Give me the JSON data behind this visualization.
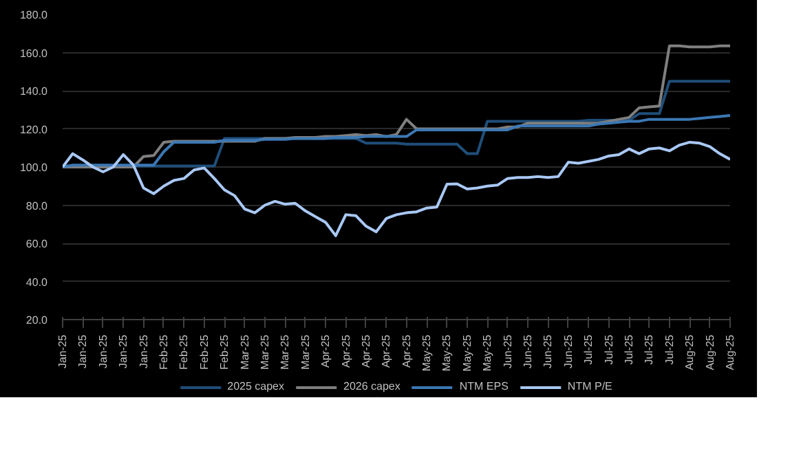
{
  "chart_data": {
    "type": "line",
    "categories": [
      "Jan-25",
      null,
      "Jan-25",
      null,
      "Jan-25",
      null,
      "Jan-25",
      null,
      "Jan-25",
      null,
      "Feb-25",
      null,
      "Feb-25",
      null,
      "Feb-25",
      null,
      "Feb-25",
      null,
      "Mar-25",
      null,
      "Mar-25",
      null,
      "Mar-25",
      null,
      "Mar-25",
      null,
      "Apr-25",
      null,
      "Apr-25",
      null,
      "Apr-25",
      null,
      "Apr-25",
      null,
      "Apr-25",
      null,
      "May-25",
      null,
      "May-25",
      null,
      "May-25",
      null,
      "May-25",
      null,
      "Jun-25",
      null,
      "Jun-25",
      null,
      "Jun-25",
      null,
      "Jun-25",
      null,
      "Jul-25",
      null,
      "Jul-25",
      null,
      "Jul-25",
      null,
      "Jul-25",
      null,
      "Jul-25",
      null,
      "Aug-25",
      null,
      "Aug-25",
      null,
      "Aug-25"
    ],
    "series": [
      {
        "name": "2025 capex",
        "color": "#1f4e79",
        "values": [
          100.5,
          100.5,
          100.5,
          100.5,
          100.5,
          100.5,
          100.5,
          100.5,
          100.5,
          100.5,
          100.5,
          100.5,
          100.5,
          100.5,
          100.5,
          100.5,
          115,
          115,
          115,
          115,
          115,
          115,
          115,
          115,
          115,
          115,
          115,
          115,
          115,
          115,
          112.5,
          112.5,
          112.5,
          112.5,
          112,
          112,
          112,
          112,
          112,
          112,
          107,
          107,
          124,
          124,
          124,
          124,
          124,
          124,
          124,
          124,
          124,
          124,
          124.5,
          124.5,
          124.5,
          124.5,
          124.5,
          128,
          128,
          128,
          145,
          145,
          145,
          145,
          145,
          145,
          145
        ]
      },
      {
        "name": "2026 capex",
        "color": "#7f7f7f",
        "values": [
          100,
          100,
          100,
          100,
          100,
          100,
          100,
          100,
          105.5,
          106,
          113,
          113.5,
          113.5,
          113.5,
          113.5,
          113.5,
          113.5,
          113.5,
          113.5,
          113.5,
          115,
          115,
          115,
          115.5,
          115.5,
          115.5,
          116,
          116,
          116.5,
          117,
          116.5,
          117,
          116,
          117,
          125,
          120,
          120,
          120,
          120,
          120,
          120,
          120,
          120,
          120,
          121,
          121,
          123,
          123,
          123,
          123,
          123,
          123,
          123,
          123,
          124,
          125,
          126,
          131,
          131.5,
          132,
          163.5,
          163.5,
          163,
          163,
          163,
          163.5,
          163.5
        ]
      },
      {
        "name": "NTM EPS",
        "color": "#3c78b4",
        "values": [
          100,
          101,
          101,
          101,
          101,
          101,
          101,
          101,
          101,
          101,
          108,
          113,
          113,
          113,
          113,
          113,
          114,
          114,
          114,
          114,
          114.5,
          114.5,
          114.5,
          115,
          115,
          115,
          115,
          115.5,
          115.5,
          115.5,
          116,
          116,
          116,
          116,
          116,
          119.5,
          119.5,
          119.5,
          119.5,
          119.5,
          119.5,
          119.5,
          119.5,
          119.5,
          119.5,
          121.5,
          121.5,
          121.5,
          121.5,
          121.5,
          121.5,
          121.5,
          121.5,
          122.5,
          123,
          123.5,
          124,
          124,
          125,
          125,
          125,
          125,
          125,
          125.5,
          126,
          126.5,
          127
        ]
      },
      {
        "name": "NTM P/E",
        "color": "#a9c8f5",
        "values": [
          100,
          107,
          103.7,
          100,
          97.5,
          100,
          106.5,
          101,
          89,
          86,
          90,
          93,
          94,
          98.5,
          99.5,
          94,
          88,
          85,
          78,
          76,
          80,
          82,
          80.5,
          81,
          77,
          74,
          71,
          64,
          75,
          74.5,
          69,
          66,
          73,
          75,
          76,
          76.5,
          78.5,
          79,
          91,
          91.2,
          88.5,
          89,
          90,
          90.5,
          94,
          94.5,
          94.5,
          95,
          94.5,
          95,
          102.5,
          102,
          103,
          104,
          105.8,
          106.5,
          109.5,
          107,
          109.5,
          110,
          108.5,
          111.5,
          113,
          112.5,
          110.7,
          106.9,
          104
        ]
      }
    ],
    "ylim": [
      20,
      180
    ],
    "yticks": [
      {
        "value": 20,
        "label": "20.0"
      },
      {
        "value": 40,
        "label": "40.0"
      },
      {
        "value": 60,
        "label": "60.0"
      },
      {
        "value": 80,
        "label": "80.0"
      },
      {
        "value": 100,
        "label": "100.0"
      },
      {
        "value": 120,
        "label": "120.0"
      },
      {
        "value": 140,
        "label": "140.0"
      },
      {
        "value": 160,
        "label": "160.0"
      },
      {
        "value": 180,
        "label": "180.0"
      }
    ],
    "grid": "y",
    "legend": "bottom"
  }
}
